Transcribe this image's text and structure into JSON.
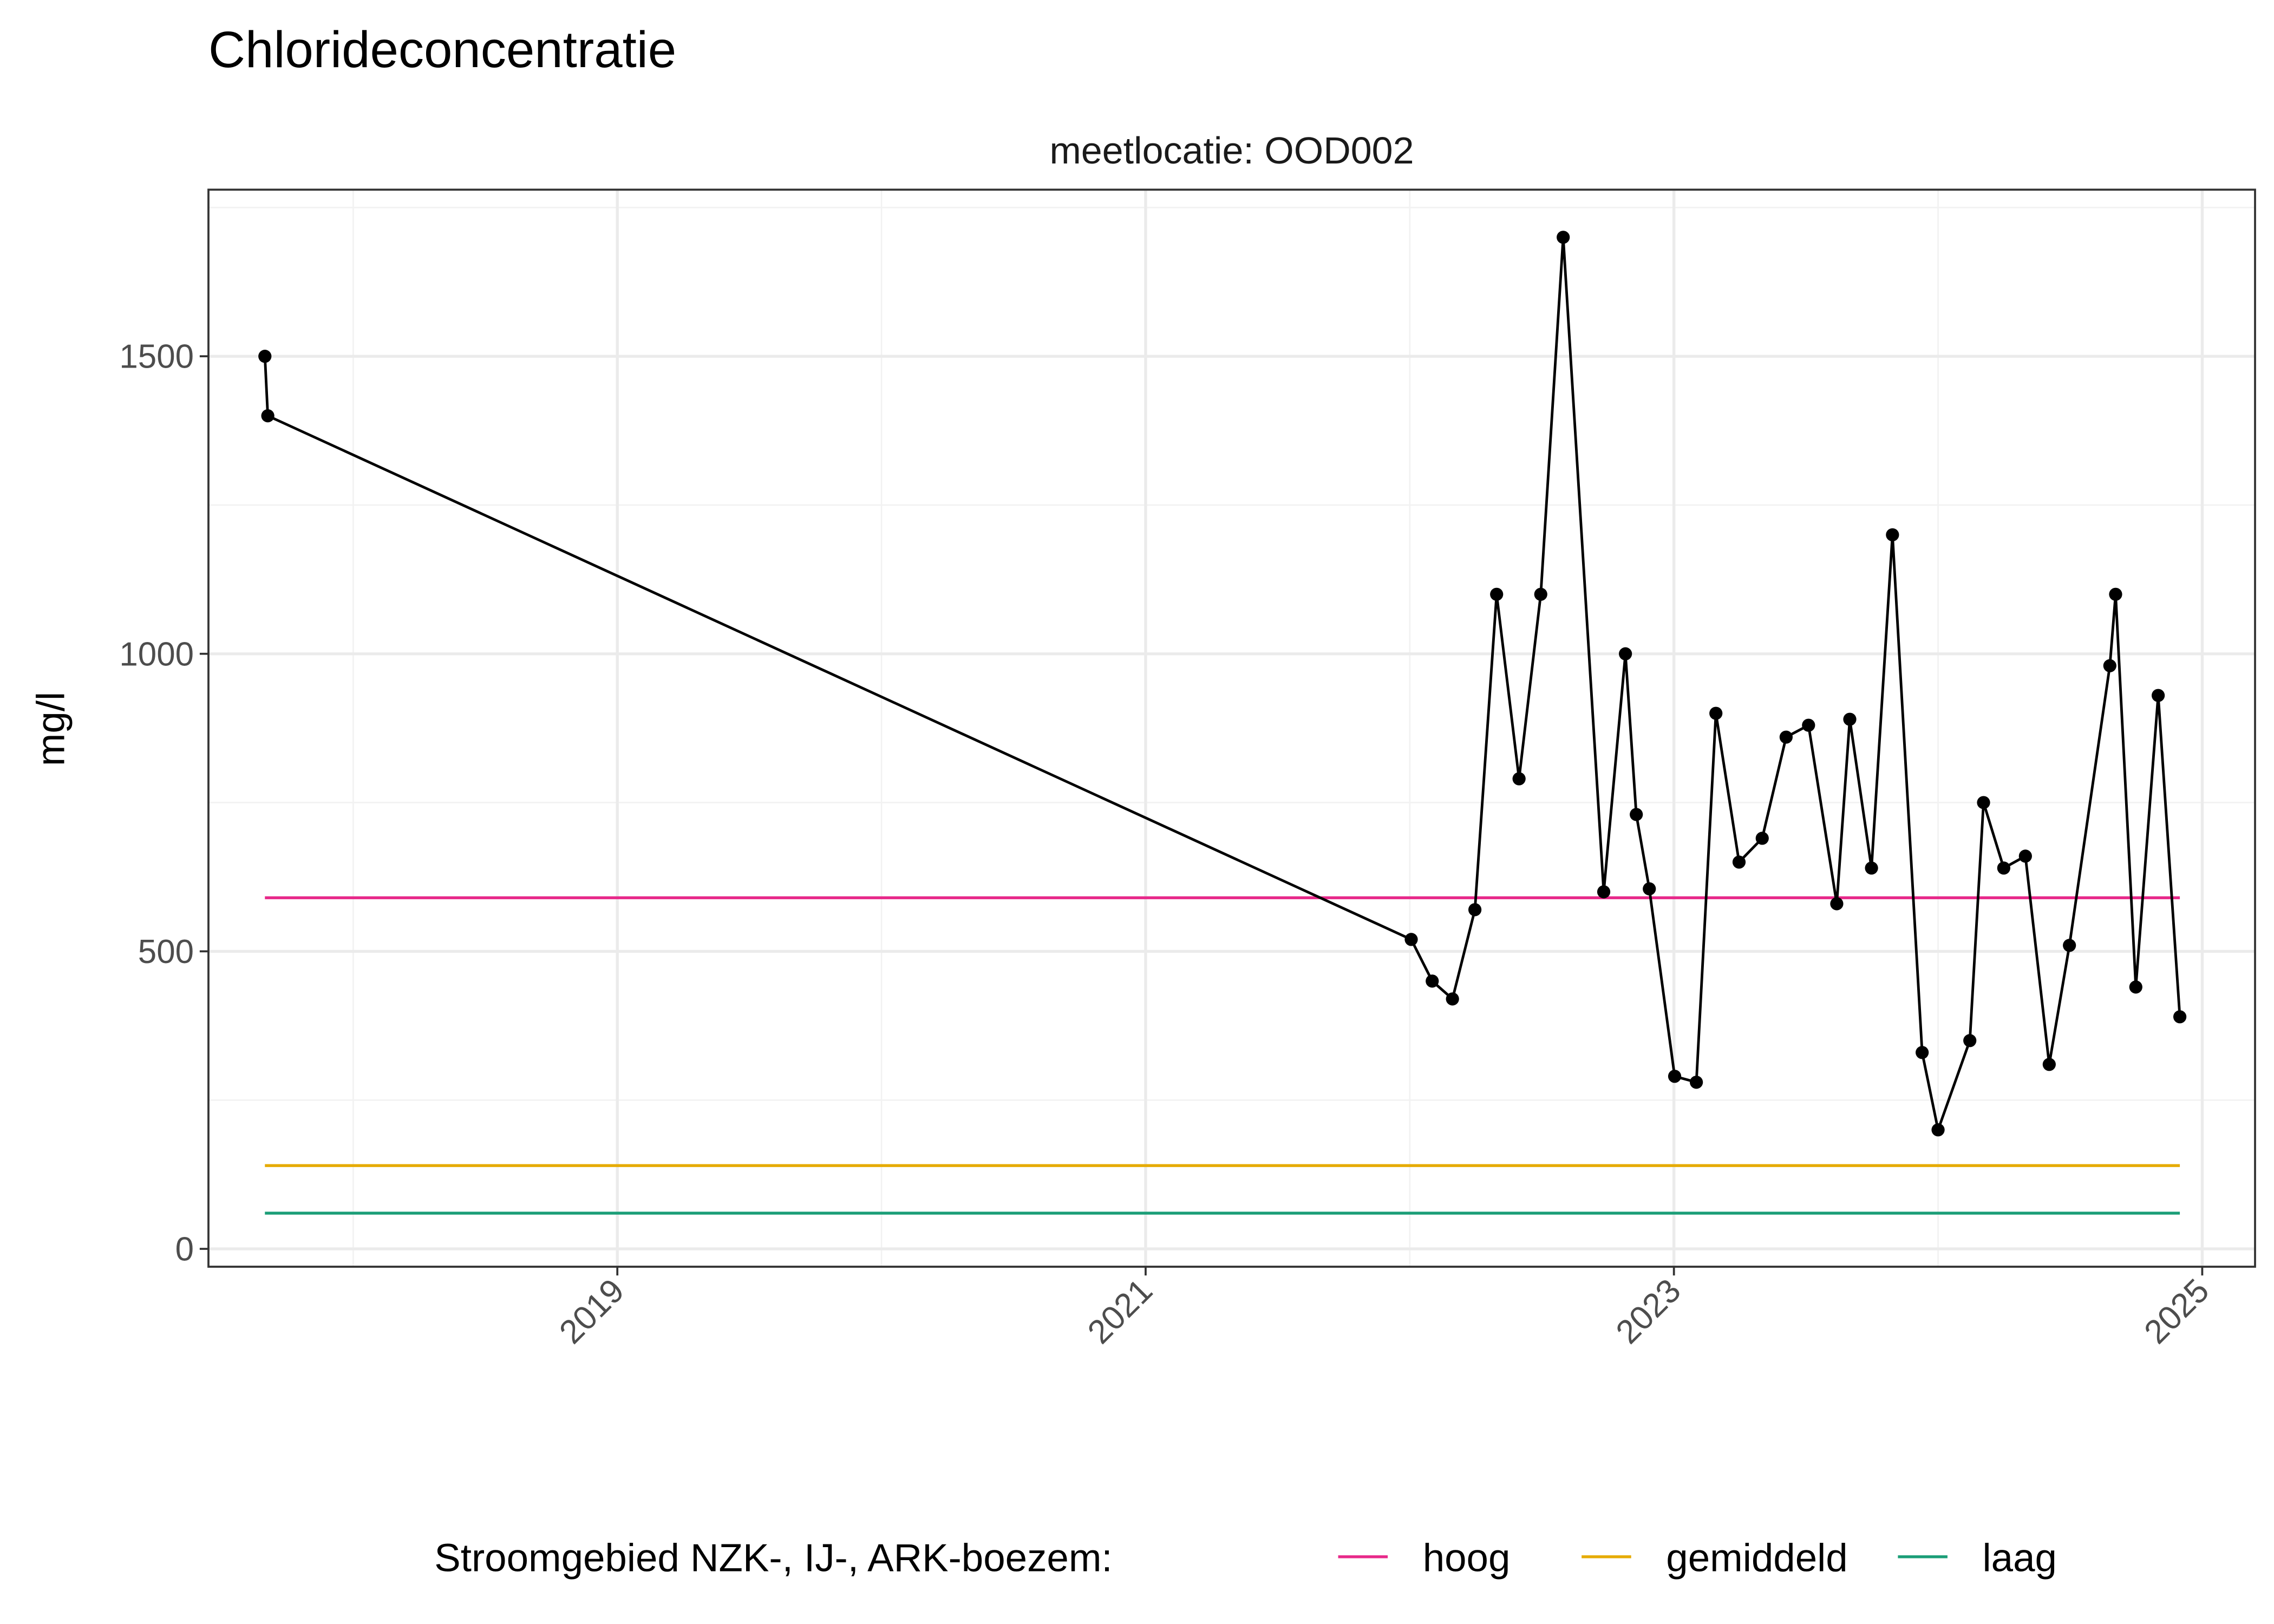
{
  "chart_data": {
    "type": "line",
    "title": "Chlorideconcentratie",
    "facet_label": "meetlocatie: OOD002",
    "xlabel": "",
    "ylabel": "mg/l",
    "x_ticks": [
      "2019",
      "2021",
      "2023",
      "2025"
    ],
    "y_ticks": [
      0,
      500,
      1000,
      1500
    ],
    "xlim": [
      "2017-06-15",
      "2025-03-15"
    ],
    "ylim": [
      -30,
      1780
    ],
    "grid": true,
    "series": [
      {
        "color": "#000000",
        "markers": true,
        "x": [
          "2017-09-01",
          "2017-09-05",
          "2022-01-03",
          "2022-02-01",
          "2022-03-01",
          "2022-04-01",
          "2022-05-01",
          "2022-06-01",
          "2022-07-01",
          "2022-08-01",
          "2022-09-26",
          "2022-10-26",
          "2022-11-10",
          "2022-11-28",
          "2023-01-02",
          "2023-02-01",
          "2023-02-28",
          "2023-04-01",
          "2023-05-03",
          "2023-06-05",
          "2023-07-06",
          "2023-08-14",
          "2023-09-01",
          "2023-10-01",
          "2023-10-30",
          "2023-12-10",
          "2024-01-01",
          "2024-02-14",
          "2024-03-04",
          "2024-04-01",
          "2024-05-01",
          "2024-06-03",
          "2024-07-01",
          "2024-08-26",
          "2024-09-03",
          "2024-10-01",
          "2024-11-01",
          "2024-12-01"
        ],
        "y": [
          1500,
          1400,
          520,
          450,
          420,
          570,
          1100,
          790,
          1100,
          1700,
          600,
          1000,
          730,
          605,
          290,
          280,
          900,
          650,
          690,
          860,
          880,
          580,
          890,
          640,
          1200,
          330,
          200,
          350,
          750,
          640,
          660,
          310,
          510,
          980,
          1100,
          440,
          930,
          390
        ]
      }
    ],
    "reference_lines": [
      {
        "name": "hoog",
        "value": 590,
        "color": "#E7298A"
      },
      {
        "name": "gemiddeld",
        "value": 140,
        "color": "#E6AB02"
      },
      {
        "name": "laag",
        "value": 60,
        "color": "#1B9E77"
      }
    ],
    "reference_span": [
      "2017-09-01",
      "2024-12-01"
    ],
    "legend": {
      "title": "Stroomgebied NZK-, IJ-, ARK-boezem:",
      "position": "bottom",
      "items": [
        "hoog",
        "gemiddeld",
        "laag"
      ]
    }
  }
}
